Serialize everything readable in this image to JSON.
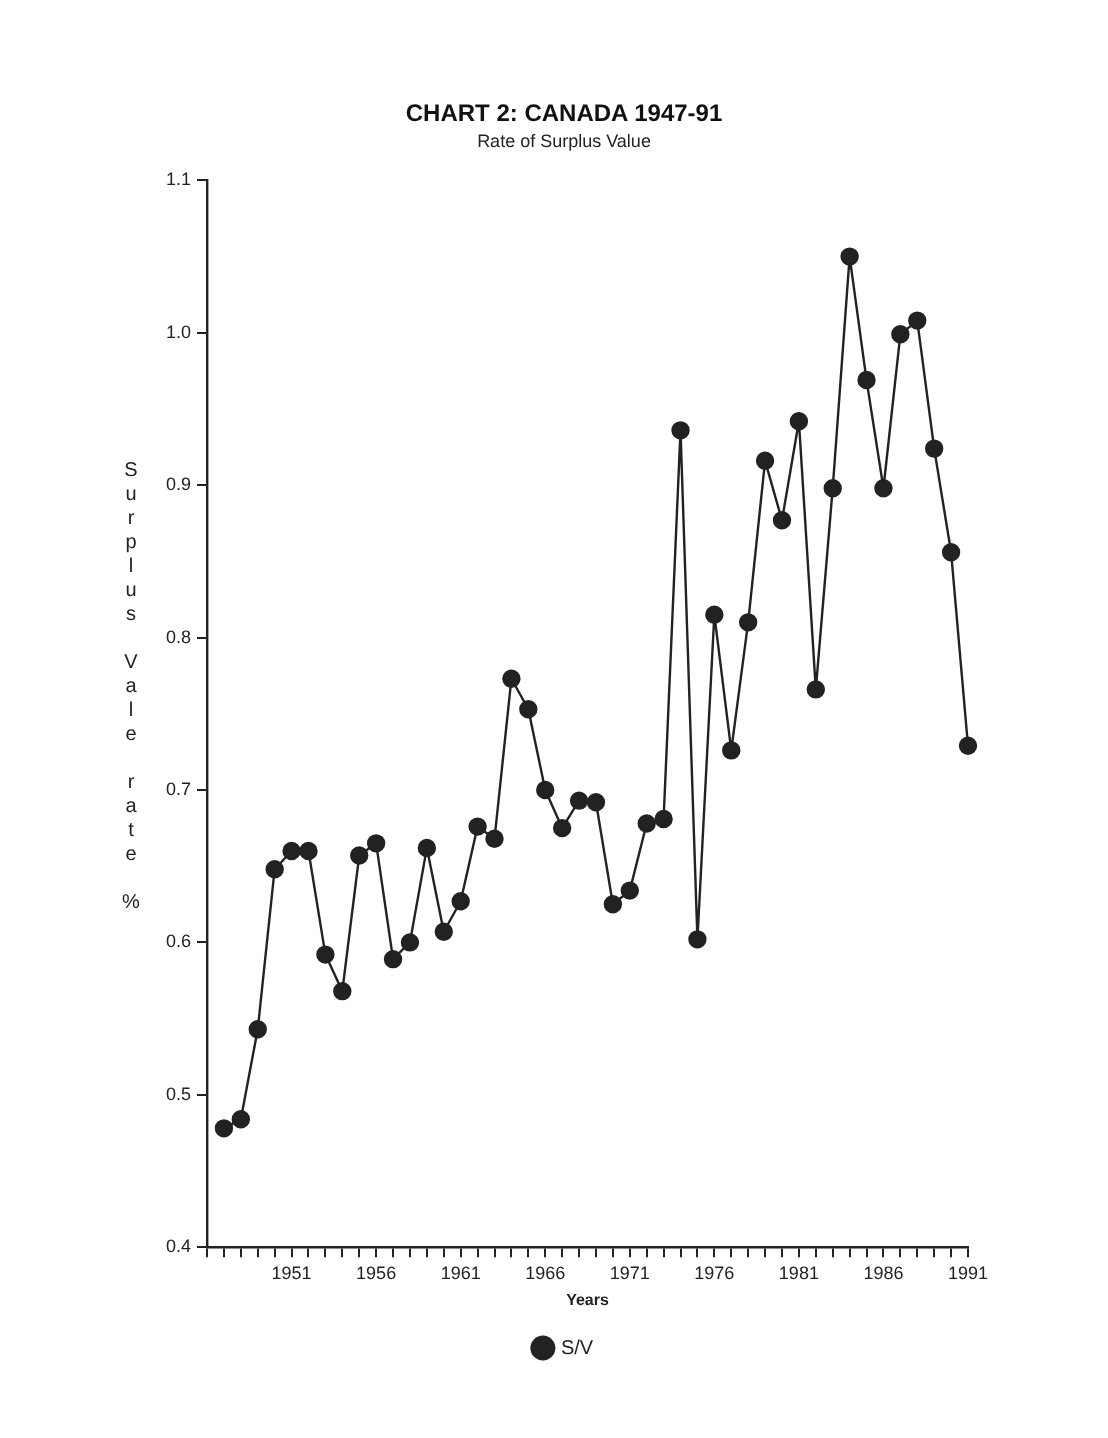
{
  "chart_data": {
    "type": "line",
    "title": "CHART 2: CANADA 1947-91",
    "subtitle": "Rate of Surplus Value",
    "xlabel": "Years",
    "ylabel": "Surplus Vale rate %",
    "x": [
      1947,
      1948,
      1949,
      1950,
      1951,
      1952,
      1953,
      1954,
      1955,
      1956,
      1957,
      1958,
      1959,
      1960,
      1961,
      1962,
      1963,
      1964,
      1965,
      1966,
      1967,
      1968,
      1969,
      1970,
      1971,
      1972,
      1973,
      1974,
      1975,
      1976,
      1977,
      1978,
      1979,
      1980,
      1981,
      1982,
      1983,
      1984,
      1985,
      1986,
      1987,
      1988,
      1989,
      1990,
      1991
    ],
    "series": [
      {
        "name": "S/V",
        "color": "#222222",
        "values": [
          0.478,
          0.484,
          0.543,
          0.648,
          0.66,
          0.66,
          0.592,
          0.568,
          0.657,
          0.665,
          0.589,
          0.6,
          0.662,
          0.607,
          0.627,
          0.676,
          0.668,
          0.773,
          0.753,
          0.7,
          0.675,
          0.693,
          0.692,
          0.625,
          0.634,
          0.678,
          0.681,
          0.936,
          0.602,
          0.815,
          0.726,
          0.81,
          0.916,
          0.877,
          0.942,
          0.766,
          0.898,
          1.05,
          0.969,
          0.898,
          0.999,
          1.008,
          0.924,
          0.856,
          0.729
        ]
      }
    ],
    "xlim": [
      1946,
      1991
    ],
    "xticks": [
      {
        "value": 1946,
        "label": null
      },
      {
        "value": 1947,
        "label": null
      },
      {
        "value": 1948,
        "label": null
      },
      {
        "value": 1949,
        "label": null
      },
      {
        "value": 1950,
        "label": null
      },
      1951,
      {
        "value": 1952,
        "label": null
      },
      {
        "value": 1953,
        "label": null
      },
      {
        "value": 1954,
        "label": null
      },
      {
        "value": 1955,
        "label": null
      },
      1956,
      {
        "value": 1957,
        "label": null
      },
      {
        "value": 1958,
        "label": null
      },
      {
        "value": 1959,
        "label": null
      },
      {
        "value": 1960,
        "label": null
      },
      1961,
      {
        "value": 1962,
        "label": null
      },
      {
        "value": 1963,
        "label": null
      },
      {
        "value": 1964,
        "label": null
      },
      {
        "value": 1965,
        "label": null
      },
      1966,
      {
        "value": 1967,
        "label": null
      },
      {
        "value": 1968,
        "label": null
      },
      {
        "value": 1969,
        "label": null
      },
      {
        "value": 1970,
        "label": null
      },
      1971,
      {
        "value": 1972,
        "label": null
      },
      {
        "value": 1973,
        "label": null
      },
      {
        "value": 1974,
        "label": null
      },
      {
        "value": 1975,
        "label": null
      },
      1976,
      {
        "value": 1977,
        "label": null
      },
      {
        "value": 1978,
        "label": null
      },
      {
        "value": 1979,
        "label": null
      },
      {
        "value": 1980,
        "label": null
      },
      1981,
      {
        "value": 1982,
        "label": null
      },
      {
        "value": 1983,
        "label": null
      },
      {
        "value": 1984,
        "label": null
      },
      {
        "value": 1985,
        "label": null
      },
      1986,
      {
        "value": 1987,
        "label": null
      },
      {
        "value": 1988,
        "label": null
      },
      {
        "value": 1989,
        "label": null
      },
      {
        "value": 1990,
        "label": null
      },
      1991
    ],
    "ylim": [
      0.4,
      1.1
    ],
    "yticks": [
      0.4,
      0.5,
      0.6,
      0.7,
      0.8,
      0.9,
      {
        "value": 1,
        "label": "1.0"
      },
      1.1
    ],
    "grid": false,
    "legend": "bottom",
    "marker": "circle",
    "line_style": "solid"
  }
}
